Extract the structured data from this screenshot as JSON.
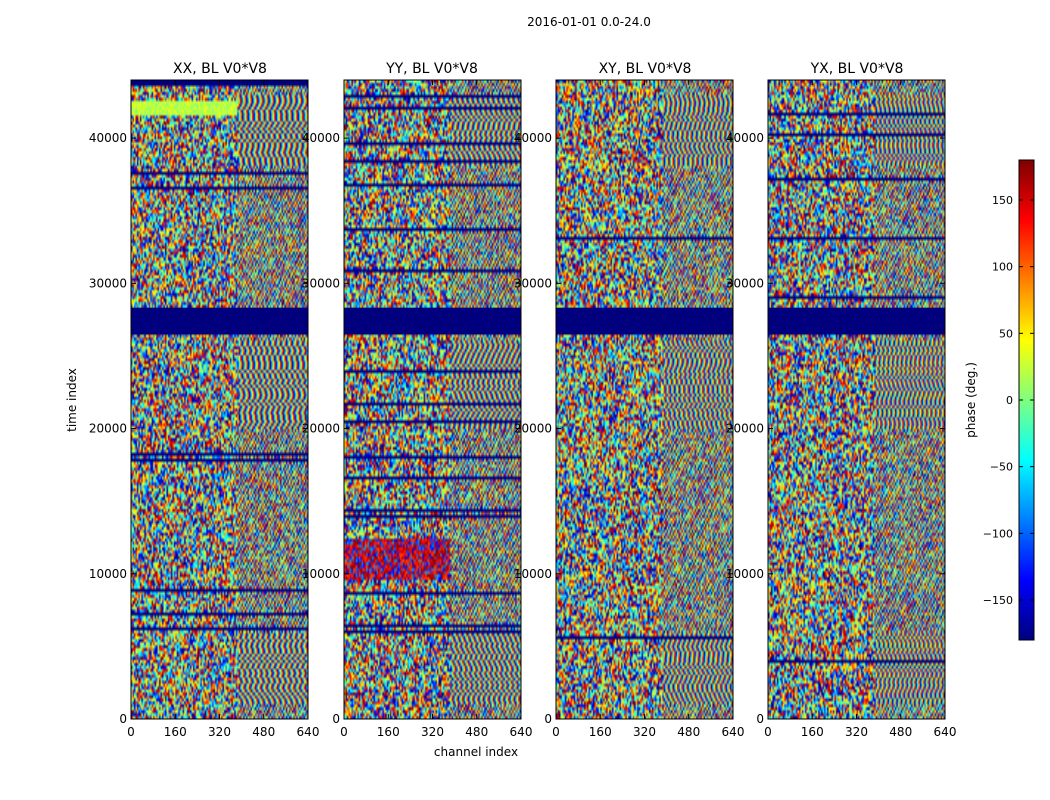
{
  "chart_data": {
    "type": "heatmap",
    "suptitle": "2016-01-01 0.0-24.0",
    "xlabel": "channel index",
    "ylabel": "time index",
    "xlim": [
      0,
      640
    ],
    "ylim": [
      0,
      44000
    ],
    "xticks": [
      0,
      160,
      320,
      480,
      640
    ],
    "yticks": [
      0,
      10000,
      20000,
      30000,
      40000
    ],
    "panels": [
      {
        "title": "XX, BL V0*V8"
      },
      {
        "title": "YY, BL V0*V8"
      },
      {
        "title": "XY, BL V0*V8"
      },
      {
        "title": "YX, BL V0*V8"
      }
    ],
    "colorbar": {
      "label": "phase (deg.)",
      "range": [
        -180,
        180
      ],
      "ticks": [
        -150,
        -100,
        -50,
        0,
        50,
        100,
        150
      ],
      "colormap": [
        "#00007f",
        "#0000ff",
        "#007fff",
        "#00ffff",
        "#7fff7f",
        "#ffff00",
        "#ff7f00",
        "#ff0000",
        "#7f0000"
      ]
    },
    "flagged_time_ranges": [
      [
        26500,
        28000
      ],
      [
        27700,
        28300
      ]
    ],
    "flag_color": "#00007f"
  }
}
